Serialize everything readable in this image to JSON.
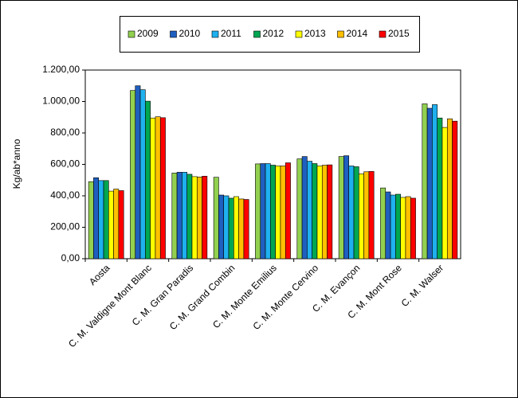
{
  "chart_data": {
    "type": "bar",
    "y_label": "Kg/ab*anno",
    "categories": [
      "Aosta",
      "C. M. Valdigne Mont Blanc",
      "C. M. Gran Paradis",
      "C. M. Grand Combin",
      "C. M. Monte Emilius",
      "C. M. Monte Cervino",
      "C. M. Evançon",
      "C. M. Mont Rose",
      "C. M. Walser"
    ],
    "series": [
      {
        "name": "2009",
        "color": "#92d050",
        "values": [
          490,
          1070,
          545,
          518,
          603,
          635,
          650,
          450,
          985
        ]
      },
      {
        "name": "2010",
        "color": "#1f5fc0",
        "values": [
          515,
          1100,
          550,
          405,
          605,
          650,
          655,
          425,
          957
        ]
      },
      {
        "name": "2011",
        "color": "#1fb0ef",
        "values": [
          497,
          1075,
          550,
          400,
          605,
          620,
          590,
          405,
          980
        ]
      },
      {
        "name": "2012",
        "color": "#00a651",
        "values": [
          497,
          1002,
          537,
          385,
          595,
          605,
          585,
          410,
          895
        ]
      },
      {
        "name": "2013",
        "color": "#ffff00",
        "values": [
          430,
          895,
          522,
          395,
          590,
          590,
          540,
          390,
          835
        ]
      },
      {
        "name": "2014",
        "color": "#ffc000",
        "values": [
          443,
          903,
          520,
          380,
          590,
          595,
          553,
          395,
          890
        ]
      },
      {
        "name": "2015",
        "color": "#ff0000",
        "values": [
          433,
          897,
          525,
          377,
          610,
          597,
          555,
          385,
          875
        ]
      }
    ],
    "ylim": [
      0,
      1200
    ],
    "yticks": [
      {
        "value": 0,
        "label": "0,00"
      },
      {
        "value": 200,
        "label": "200,00"
      },
      {
        "value": 400,
        "label": "400,00"
      },
      {
        "value": 600,
        "label": "600,00"
      },
      {
        "value": 800,
        "label": "800,00"
      },
      {
        "value": 1000,
        "label": "1.000,00"
      },
      {
        "value": 1200,
        "label": "1.200,00"
      }
    ],
    "legend": "top"
  }
}
